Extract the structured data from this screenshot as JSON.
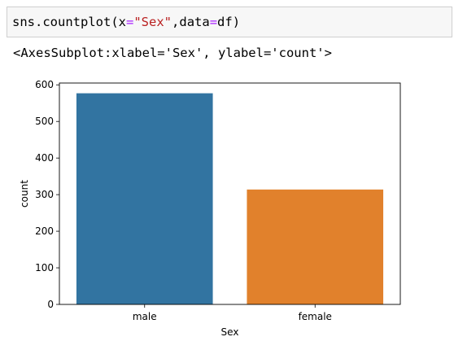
{
  "code_cell": {
    "fn": "sns.countplot(",
    "kw_x": "x",
    "eq": "=",
    "str_sex": "\"Sex\"",
    "sep": ",",
    "kw_data": "data",
    "val_df": "df",
    "close": ")"
  },
  "output": {
    "repr": "<AxesSubplot:xlabel='Sex', ylabel='count'>"
  },
  "colors": {
    "male": "#3274a1",
    "female": "#e1812c"
  },
  "chart_data": {
    "type": "bar",
    "categories": [
      "male",
      "female"
    ],
    "values": [
      577,
      314
    ],
    "xlabel": "Sex",
    "ylabel": "count",
    "ylim": [
      0,
      605
    ],
    "yticks": [
      0,
      100,
      200,
      300,
      400,
      500,
      600
    ],
    "grid": false
  }
}
